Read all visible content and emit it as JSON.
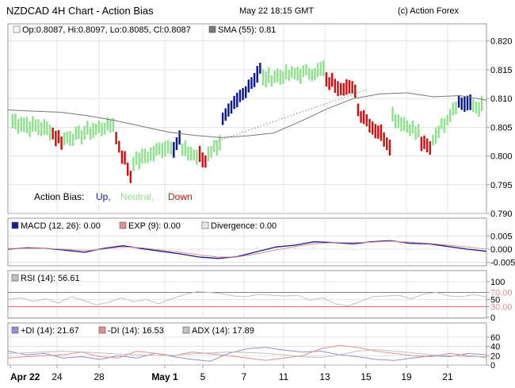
{
  "header": {
    "title": "NZDCAD 4H Chart - Action Bias",
    "datetime": "May 22 18:15 GMT",
    "copyright": "(c) Action Forex"
  },
  "colors": {
    "up": "#0a1a8c",
    "neutral": "#90e090",
    "down": "#cc1111",
    "sma": "#777777",
    "macd": "#1a1a8c",
    "exp": "#e09090",
    "rsi": "#c0c0c0",
    "plus_di": "#9090d0",
    "minus_di": "#e09090",
    "adx": "#c0c0c0",
    "grid": "#cccccc"
  },
  "chart_data": [
    {
      "type": "ohlc",
      "panel": "price",
      "legend": {
        "ohlc_text": "Op:0.8087, Hi:0.8097, Lo:0.8085, Cl:0.8087",
        "sma_text": "SMA (55): 0.81"
      },
      "action_bias": {
        "label": "Action Bias:",
        "up": "Up,",
        "neutral": "Neutral,",
        "down": "Down"
      },
      "ylim": [
        0.79,
        0.823
      ],
      "y_ticks": [
        "0.820",
        "0.815",
        "0.810",
        "0.805",
        "0.800",
        "0.795",
        "0.790"
      ],
      "y_tick_values": [
        0.82,
        0.815,
        0.81,
        0.805,
        0.8,
        0.795,
        0.79
      ],
      "segments": [
        {
          "n": 14,
          "start": 0.806,
          "end": 0.8045,
          "bias": "neutral"
        },
        {
          "n": 4,
          "start": 0.804,
          "end": 0.8025,
          "bias": "down"
        },
        {
          "n": 18,
          "start": 0.803,
          "end": 0.8055,
          "bias": "neutral"
        },
        {
          "n": 6,
          "start": 0.803,
          "end": 0.7965,
          "bias": "down"
        },
        {
          "n": 14,
          "start": 0.799,
          "end": 0.802,
          "bias": "neutral"
        },
        {
          "n": 3,
          "start": 0.8015,
          "end": 0.803,
          "bias": "up"
        },
        {
          "n": 6,
          "start": 0.801,
          "end": 0.8,
          "bias": "neutral"
        },
        {
          "n": 3,
          "start": 0.8,
          "end": 0.799,
          "bias": "down"
        },
        {
          "n": 5,
          "start": 0.8005,
          "end": 0.8025,
          "bias": "neutral"
        },
        {
          "n": 14,
          "start": 0.806,
          "end": 0.815,
          "bias": "up"
        },
        {
          "n": 22,
          "start": 0.8135,
          "end": 0.815,
          "bias": "neutral"
        },
        {
          "n": 11,
          "start": 0.813,
          "end": 0.8115,
          "bias": "down"
        },
        {
          "n": 12,
          "start": 0.808,
          "end": 0.802,
          "bias": "down"
        },
        {
          "n": 10,
          "start": 0.807,
          "end": 0.804,
          "bias": "neutral"
        },
        {
          "n": 4,
          "start": 0.8025,
          "end": 0.801,
          "bias": "down"
        },
        {
          "n": 9,
          "start": 0.803,
          "end": 0.809,
          "bias": "neutral"
        },
        {
          "n": 5,
          "start": 0.8095,
          "end": 0.8088,
          "bias": "up"
        },
        {
          "n": 4,
          "start": 0.8085,
          "end": 0.8087,
          "bias": "neutral"
        }
      ],
      "sma": [
        0.808,
        0.8078,
        0.8076,
        0.807,
        0.8062,
        0.8052,
        0.8042,
        0.8036,
        0.8032,
        0.8035,
        0.804,
        0.806,
        0.8082,
        0.81,
        0.8108,
        0.811,
        0.8103,
        0.8105,
        0.8097
      ]
    },
    {
      "type": "line",
      "panel": "macd",
      "legend": [
        "MACD (12, 26): 0.00",
        "EXP (9): 0.00",
        "Divergence: 0.00"
      ],
      "ylim": [
        -0.006,
        0.006
      ],
      "y_ticks": [
        "0.005",
        "0.000",
        "-0.005"
      ],
      "y_tick_values": [
        0.005,
        0.0,
        -0.005
      ],
      "series": [
        {
          "key": "macd",
          "values": [
            0.0,
            0.0005,
            0.0003,
            -0.0004,
            -0.0012,
            0.0003,
            0.0013,
            0.0002,
            -0.0008,
            -0.0018,
            -0.003,
            -0.0035,
            -0.0028,
            -0.001,
            0.0008,
            0.0015,
            0.0028,
            0.0025,
            0.002,
            0.0028,
            0.0032,
            0.0022,
            0.002,
            0.001,
            0.0,
            -0.0008
          ]
        },
        {
          "key": "exp",
          "values": [
            0.0002,
            0.0003,
            0.0003,
            -0.0001,
            -0.0006,
            0.0,
            0.0008,
            0.0005,
            -0.0004,
            -0.0012,
            -0.0022,
            -0.003,
            -0.0029,
            -0.0018,
            -0.0003,
            0.001,
            0.002,
            0.0025,
            0.0025,
            0.0026,
            0.003,
            0.0026,
            0.0022,
            0.0015,
            0.0008,
            0.0
          ]
        }
      ]
    },
    {
      "type": "line",
      "panel": "rsi",
      "legend": [
        "RSI (14): 56.61"
      ],
      "ylim": [
        0,
        100
      ],
      "y_ticks": [
        "100",
        "70.00",
        "50",
        "30.00",
        "0"
      ],
      "y_tick_values": [
        100,
        70,
        50,
        30,
        0
      ],
      "series": [
        {
          "key": "rsi",
          "values": [
            50,
            55,
            45,
            52,
            40,
            58,
            48,
            35,
            42,
            55,
            44,
            50,
            38,
            52,
            64,
            72,
            70,
            66,
            60,
            58,
            65,
            62,
            60,
            62,
            48,
            55,
            38,
            32,
            45,
            58,
            60,
            62,
            52,
            65,
            70,
            60,
            58,
            64,
            57
          ]
        }
      ]
    },
    {
      "type": "line",
      "panel": "dmi",
      "legend": [
        "+DI (14): 21.67",
        "-DI (14): 16.53",
        "ADX (14): 17.89"
      ],
      "ylim": [
        0,
        65
      ],
      "y_ticks": [
        "60",
        "40",
        "20",
        "0"
      ],
      "y_tick_values": [
        60,
        40,
        20,
        0
      ],
      "series": [
        {
          "key": "plus_di",
          "values": [
            30,
            22,
            25,
            15,
            18,
            12,
            20,
            15,
            25,
            18,
            12,
            8,
            25,
            35,
            38,
            32,
            28,
            30,
            22,
            18,
            12,
            10,
            15,
            20,
            18,
            25,
            22
          ]
        },
        {
          "key": "minus_di",
          "values": [
            15,
            18,
            20,
            22,
            28,
            18,
            15,
            30,
            25,
            20,
            28,
            24,
            20,
            15,
            10,
            15,
            20,
            35,
            42,
            38,
            30,
            25,
            20,
            18,
            25,
            20,
            16
          ]
        },
        {
          "key": "adx",
          "values": [
            25,
            26,
            28,
            30,
            28,
            26,
            24,
            22,
            20,
            21,
            24,
            26,
            28,
            27,
            25,
            22,
            18,
            16,
            22,
            30,
            33,
            30,
            26,
            22,
            20,
            18,
            18
          ]
        }
      ]
    }
  ],
  "x_axis": {
    "labels": [
      "Apr 22",
      "24",
      "28",
      "May 1",
      "5",
      "7",
      "11",
      "13",
      "15",
      "19",
      "21"
    ]
  }
}
